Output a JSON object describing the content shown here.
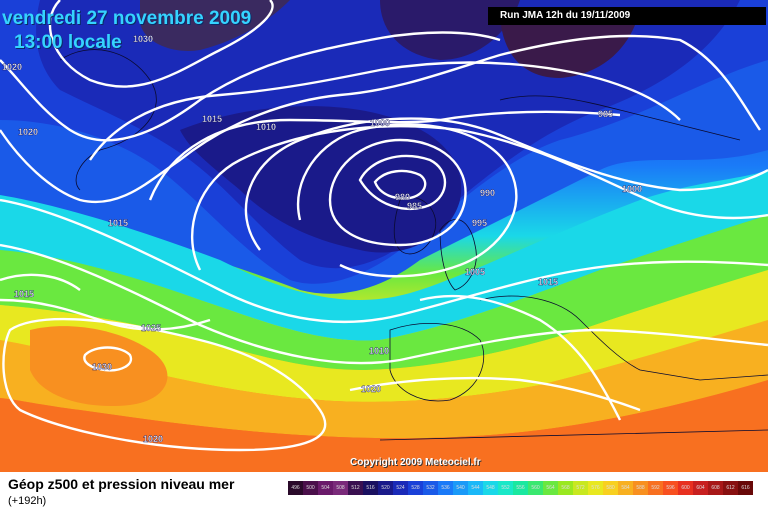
{
  "title": {
    "date": "vendredi 27 novembre 2009",
    "time": "13:00 locale"
  },
  "run_info": "Run JMA 12h du 19/11/2009",
  "copyright": "Copyright 2009 Meteociel.fr",
  "legend": {
    "title": "Géop z500 et pression niveau mer",
    "subtitle": "(+192h)",
    "scale": [
      "496",
      "500",
      "504",
      "508",
      "512",
      "516",
      "520",
      "524",
      "528",
      "532",
      "536",
      "540",
      "544",
      "548",
      "552",
      "556",
      "560",
      "564",
      "568",
      "572",
      "576",
      "580",
      "584",
      "588",
      "592",
      "596",
      "600",
      "604",
      "608",
      "612",
      "616"
    ],
    "colors": [
      "#2a0a2a",
      "#4a0f4a",
      "#6a1a6a",
      "#7a2a7a",
      "#3a1050",
      "#1a1060",
      "#1a1a8a",
      "#1a2ab8",
      "#1a40d8",
      "#1a5ae8",
      "#1a7af8",
      "#1a9af8",
      "#1ab8f8",
      "#1ad8e8",
      "#1ae8c8",
      "#1ae8a0",
      "#3ae870",
      "#6ae840",
      "#9ae820",
      "#c8e820",
      "#e8e820",
      "#f8d020",
      "#f8b020",
      "#f89020",
      "#f87020",
      "#f85020",
      "#e83020",
      "#c82020",
      "#a81818",
      "#881010",
      "#680808"
    ]
  },
  "pressure_labels": [
    "1030",
    "1020",
    "1020",
    "1015",
    "1010",
    "1000",
    "985",
    "980",
    "985",
    "990",
    "995",
    "1000",
    "1005",
    "1015",
    "1015",
    "1015",
    "1025",
    "1030",
    "1010",
    "1020",
    "1020"
  ]
}
